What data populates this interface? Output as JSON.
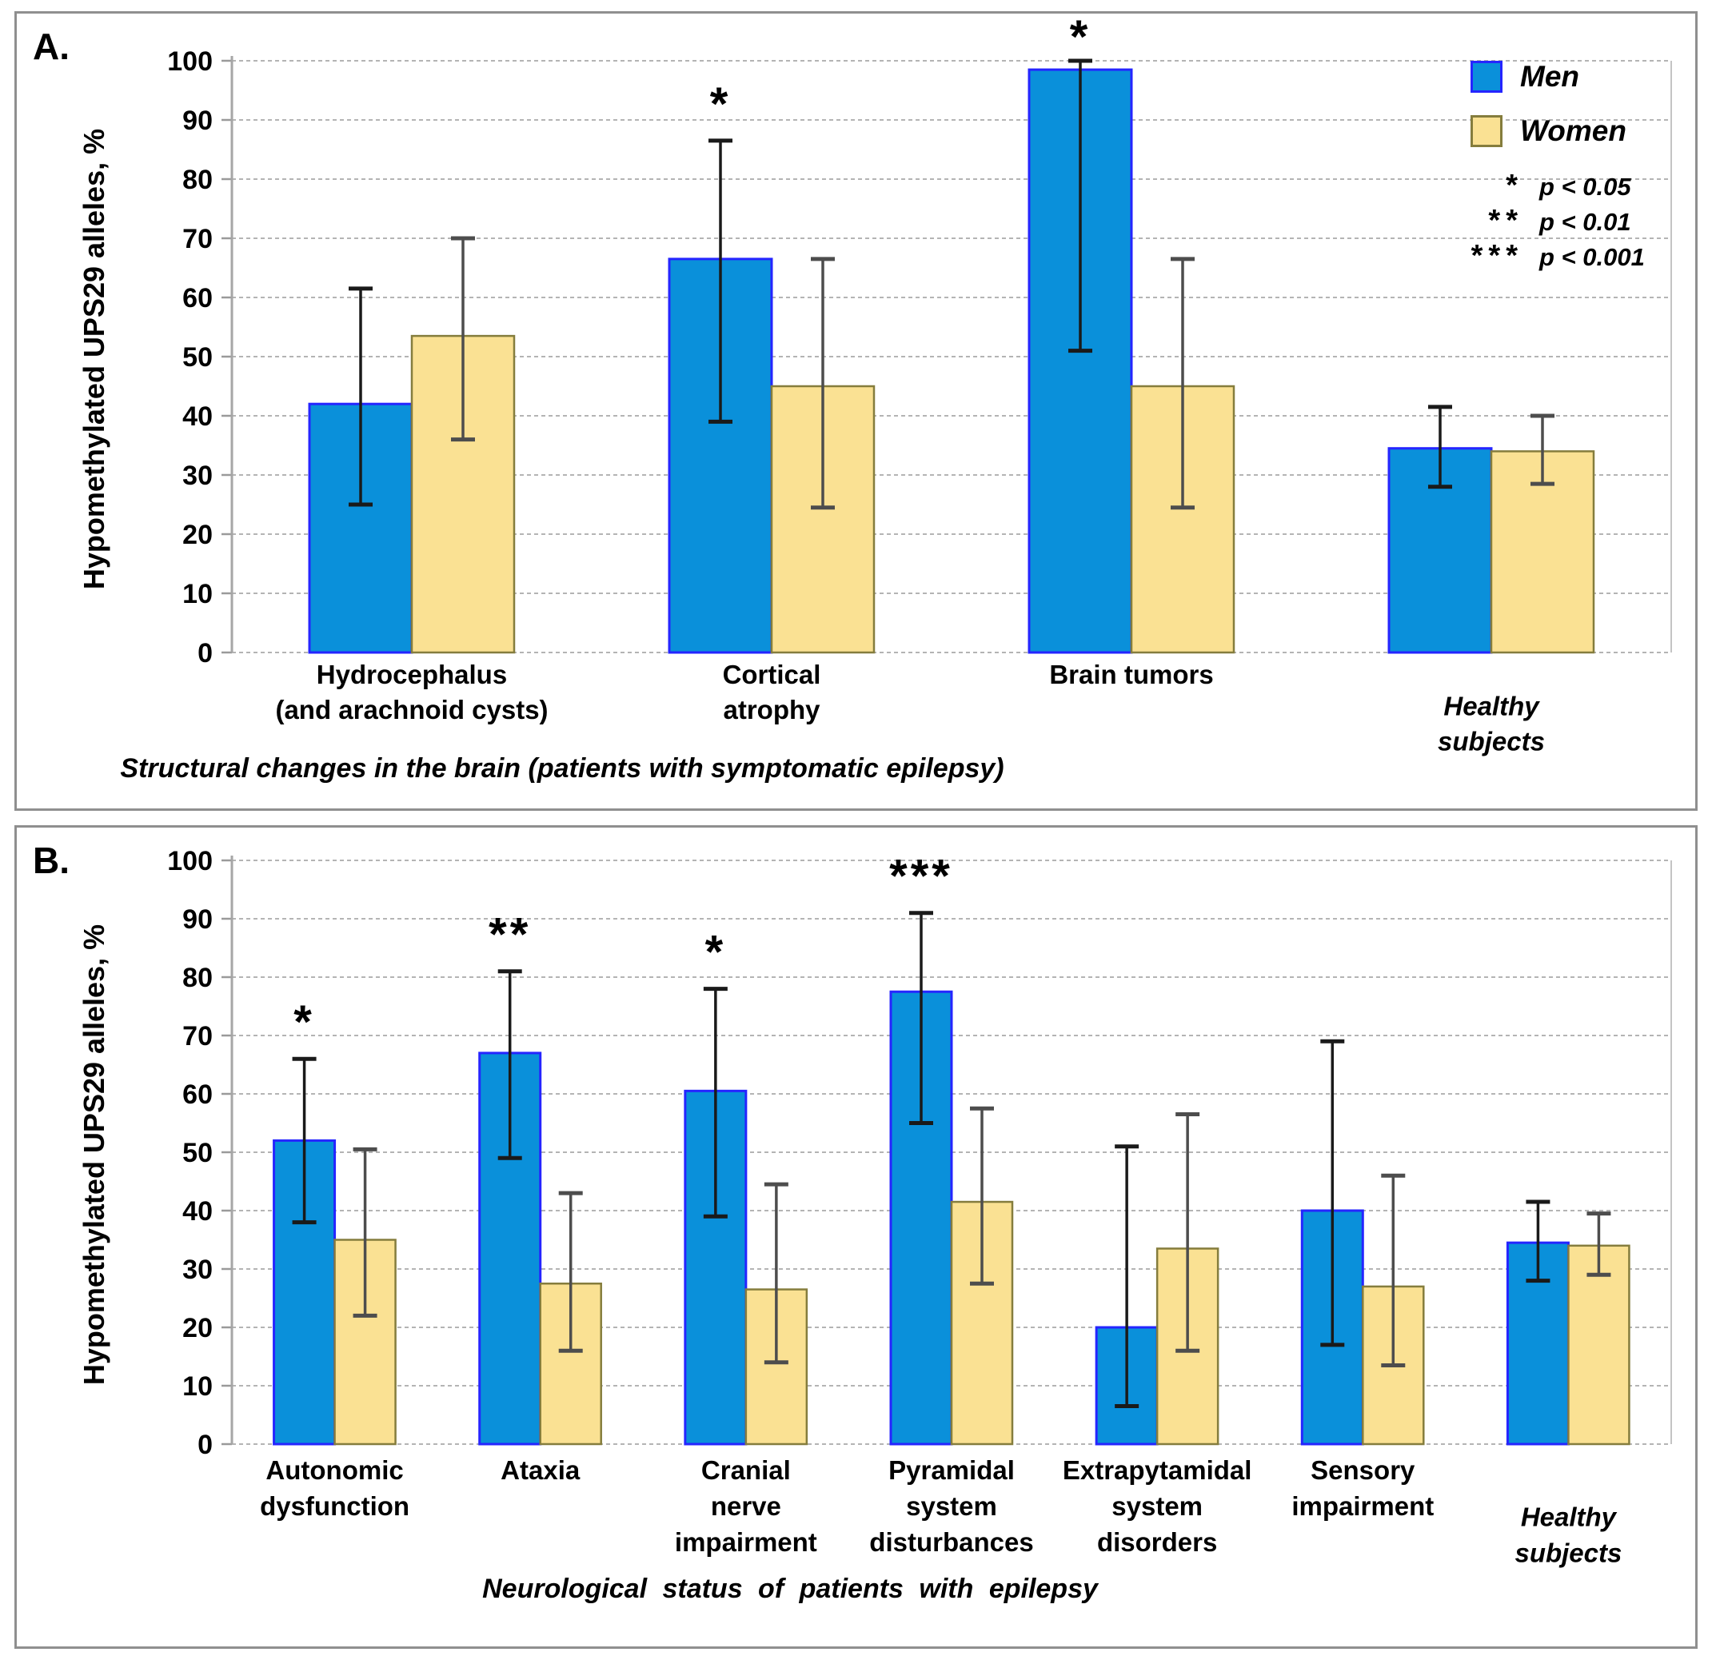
{
  "legend": {
    "items": [
      {
        "label": "Men",
        "fill": "#0a90da",
        "border": "#2525ff"
      },
      {
        "label": "Women",
        "fill": "#fae193",
        "border": "#857d3d"
      }
    ],
    "sig_rows": [
      {
        "symbol": "*",
        "label": "p < 0.05"
      },
      {
        "symbol": "**",
        "label": "p < 0.01"
      },
      {
        "symbol": "***",
        "label": "p < 0.001"
      }
    ]
  },
  "chart_data": [
    {
      "panel_label": "A.",
      "type": "bar",
      "ylabel": "Hypomethylated UPS29 alleles,  %",
      "xlabel": "Structural changes in the brain (patients with symptomatic epilepsy)",
      "ylim": [
        0,
        100
      ],
      "ytick_step": 10,
      "grid": "horizontal-dashed",
      "legend_position": "top-right",
      "categories": [
        {
          "lines": [
            "Hydrocephalus",
            "(and arachnoid cysts)"
          ],
          "italic": false,
          "offset_lines": 0
        },
        {
          "lines": [
            "Cortical",
            "atrophy"
          ],
          "italic": false,
          "offset_lines": 0
        },
        {
          "lines": [
            "Brain tumors"
          ],
          "italic": false,
          "offset_lines": 0
        },
        {
          "lines": [
            "Healthy",
            "subjects"
          ],
          "italic": true,
          "offset_lines": 0.9
        }
      ],
      "series": [
        {
          "name": "Men",
          "fill": "#0a90da",
          "border": "#2525ff",
          "error_color": "#1a1a1a",
          "values": [
            42,
            66.5,
            98.5,
            34.5
          ],
          "err_low": [
            25,
            39,
            51,
            28
          ],
          "err_high": [
            61.5,
            86.5,
            100,
            41.5
          ],
          "sig": [
            "",
            "*",
            "*",
            ""
          ]
        },
        {
          "name": "Women",
          "fill": "#fae193",
          "border": "#857d3d",
          "error_color": "#4d4d4d",
          "values": [
            53.5,
            45,
            45,
            34
          ],
          "err_low": [
            36,
            24.5,
            24.5,
            28.5
          ],
          "err_high": [
            70,
            66.5,
            66.5,
            40
          ],
          "sig": [
            "",
            "",
            "",
            ""
          ]
        }
      ]
    },
    {
      "panel_label": "B.",
      "type": "bar",
      "ylabel": "Hypomethylated UPS29 alleles,  %",
      "xlabel": "Neurological  status  of  patients  with  epilepsy",
      "ylim": [
        0,
        100
      ],
      "ytick_step": 10,
      "grid": "horizontal-dashed",
      "legend_position": "none",
      "categories": [
        {
          "lines": [
            "Autonomic",
            "dysfunction"
          ],
          "italic": false,
          "offset_lines": 0
        },
        {
          "lines": [
            "Ataxia"
          ],
          "italic": false,
          "offset_lines": 0
        },
        {
          "lines": [
            "Cranial",
            "nerve",
            "impairment"
          ],
          "italic": false,
          "offset_lines": 0
        },
        {
          "lines": [
            "Pyramidal",
            "system",
            "disturbances"
          ],
          "italic": false,
          "offset_lines": 0
        },
        {
          "lines": [
            "Extrapytamidal",
            "system",
            "disorders"
          ],
          "italic": false,
          "offset_lines": 0
        },
        {
          "lines": [
            "Sensory",
            "impairment"
          ],
          "italic": false,
          "offset_lines": 0
        },
        {
          "lines": [
            "Healthy",
            "subjects"
          ],
          "italic": true,
          "offset_lines": 1.3
        }
      ],
      "series": [
        {
          "name": "Men",
          "fill": "#0a90da",
          "border": "#2525ff",
          "error_color": "#1a1a1a",
          "values": [
            52,
            67,
            60.5,
            77.5,
            20,
            40,
            34.5
          ],
          "err_low": [
            38,
            49,
            39,
            55,
            6.5,
            17,
            28
          ],
          "err_high": [
            66,
            81,
            78,
            91,
            51,
            69,
            41.5
          ],
          "sig": [
            "*",
            "**",
            "*",
            "***",
            "",
            "",
            ""
          ]
        },
        {
          "name": "Women",
          "fill": "#fae193",
          "border": "#857d3d",
          "error_color": "#4d4d4d",
          "values": [
            35,
            27.5,
            26.5,
            41.5,
            33.5,
            27,
            34
          ],
          "err_low": [
            22,
            16,
            14,
            27.5,
            16,
            13.5,
            29
          ],
          "err_high": [
            50.5,
            43,
            44.5,
            57.5,
            56.5,
            46,
            39.5
          ],
          "sig": [
            "",
            "",
            "",
            "",
            "",
            "",
            ""
          ]
        }
      ]
    }
  ]
}
